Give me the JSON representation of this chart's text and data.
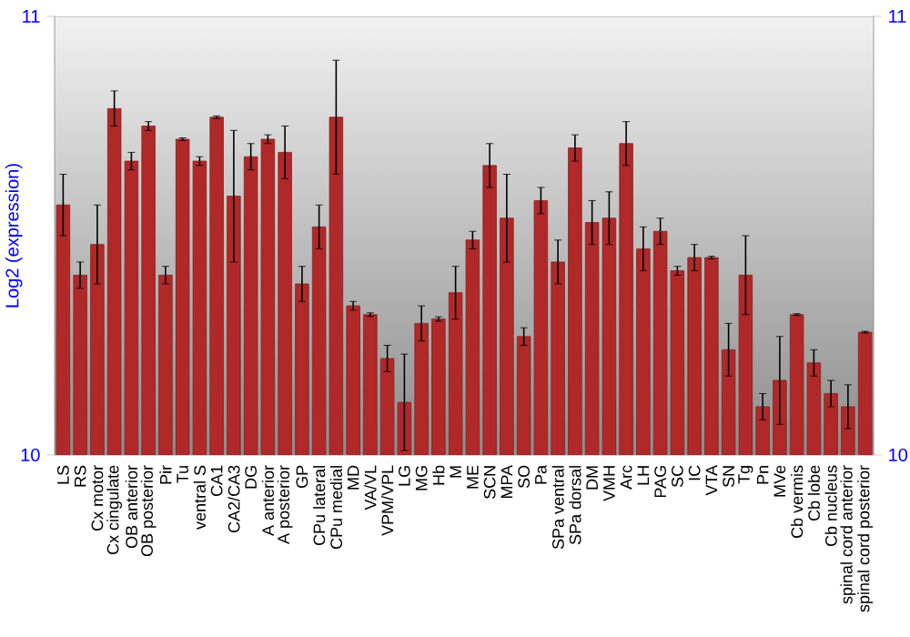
{
  "chart_data": {
    "type": "bar",
    "ylabel": "Log2 (expression)",
    "color": "#b02828",
    "categories": [
      "LS",
      "RS",
      "Cx motor",
      "Cx cingulate",
      "OB anterior",
      "OB posterior",
      "Pir",
      "Tu",
      "ventral S",
      "CA1",
      "CA2/CA3",
      "DG",
      "A anterior",
      "A posterior",
      "GP",
      "CPu lateral",
      "CPu medial",
      "MD",
      "VA/VL",
      "VPM/VPL",
      "LG",
      "MG",
      "Hb",
      "M",
      "ME",
      "SCN",
      "MPA",
      "SO",
      "Pa",
      "SPa ventral",
      "SPa dorsal",
      "DM",
      "VMH",
      "Arc",
      "LH",
      "PAG",
      "SC",
      "IC",
      "VTA",
      "SN",
      "Tg",
      "Pn",
      "MVe",
      "Cb vermis",
      "Cb lobe",
      "Cb nucleus",
      "spinal cord anterior",
      "spinal cord posterior"
    ],
    "values": [
      10.57,
      10.41,
      10.48,
      10.79,
      10.67,
      10.75,
      10.41,
      10.72,
      10.67,
      10.77,
      10.59,
      10.68,
      10.72,
      10.69,
      10.39,
      10.52,
      10.77,
      10.34,
      10.32,
      10.22,
      10.12,
      10.3,
      10.31,
      10.37,
      10.49,
      10.66,
      10.54,
      10.27,
      10.58,
      10.44,
      10.7,
      10.53,
      10.54,
      10.71,
      10.47,
      10.51,
      10.42,
      10.45,
      10.45,
      10.24,
      10.41,
      10.11,
      10.17,
      10.32,
      10.21,
      10.14,
      10.11,
      10.28
    ],
    "errors": [
      0.07,
      0.03,
      0.09,
      0.04,
      0.02,
      0.01,
      0.02,
      0.003,
      0.01,
      0.003,
      0.15,
      0.03,
      0.01,
      0.06,
      0.04,
      0.05,
      0.13,
      0.01,
      0.004,
      0.03,
      0.11,
      0.04,
      0.005,
      0.06,
      0.02,
      0.05,
      0.1,
      0.02,
      0.03,
      0.05,
      0.03,
      0.05,
      0.06,
      0.05,
      0.05,
      0.03,
      0.01,
      0.03,
      0.003,
      0.06,
      0.09,
      0.03,
      0.1,
      0.002,
      0.03,
      0.03,
      0.05,
      0.002
    ],
    "ylim": [
      10,
      11
    ],
    "yticks": [
      10,
      11
    ],
    "y2lim": [
      10,
      11
    ],
    "y2ticks": [
      10,
      11
    ],
    "grid": false
  }
}
